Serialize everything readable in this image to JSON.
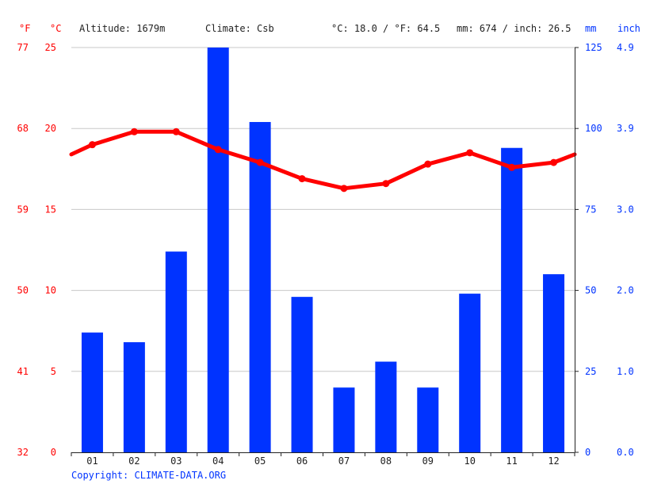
{
  "header": {
    "unit_f": "°F",
    "unit_c": "°C",
    "altitude": "Altitude: 1679m",
    "climate": "Climate: Csb",
    "temp_avg": "°C: 18.0 / °F: 64.5",
    "precip_total": "mm: 674 / inch: 26.5",
    "unit_mm": "mm",
    "unit_inch": "inch"
  },
  "footer": {
    "copyright": "Copyright: CLIMATE-DATA.ORG"
  },
  "colors": {
    "temperature": "#ff0000",
    "precipitation": "#0033ff",
    "grid": "#c8c8c8"
  },
  "chart_data": {
    "type": "bar",
    "categories": [
      "01",
      "02",
      "03",
      "04",
      "05",
      "06",
      "07",
      "08",
      "09",
      "10",
      "11",
      "12"
    ],
    "series": [
      {
        "type": "bar",
        "axis": "right",
        "values": [
          37,
          34,
          62,
          125,
          102,
          48,
          20,
          28,
          20,
          49,
          94,
          55
        ]
      },
      {
        "type": "line",
        "axis": "left",
        "values": [
          19.0,
          19.8,
          19.8,
          18.7,
          17.9,
          16.9,
          16.3,
          16.6,
          17.8,
          18.5,
          17.6,
          17.9
        ],
        "edge_values": [
          18.4,
          18.4
        ]
      }
    ],
    "y_left": {
      "ylim": [
        0,
        25
      ],
      "ticks": [
        "0",
        "5",
        "10",
        "15",
        "20",
        "25"
      ]
    },
    "y_left_f": {
      "ticks": [
        "32",
        "41",
        "50",
        "59",
        "68",
        "77"
      ]
    },
    "y_right": {
      "ylim": [
        0,
        125
      ],
      "ticks": [
        "0",
        "25",
        "50",
        "75",
        "100",
        "125"
      ]
    },
    "y_right_inch": {
      "ticks": [
        "0.0",
        "1.0",
        "2.0",
        "3.0",
        "3.9",
        "4.9"
      ]
    },
    "grid": true
  }
}
